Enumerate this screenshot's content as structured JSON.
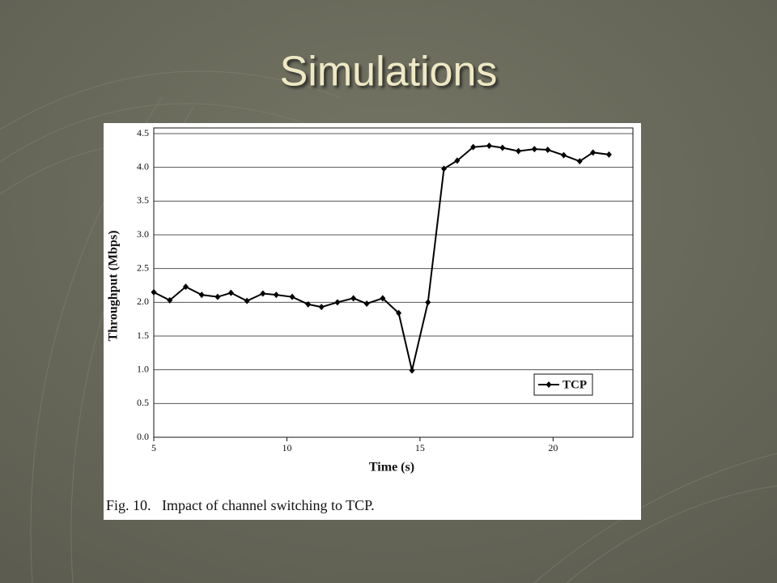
{
  "title": "Simulations",
  "chart_data": {
    "type": "line",
    "caption": "Fig. 10.   Impact of channel switching to TCP.",
    "x_label": "Time (s)",
    "y_label": "Throughput (Mbps)",
    "x": [
      5.0,
      5.6,
      6.2,
      6.8,
      7.4,
      7.9,
      8.5,
      9.1,
      9.6,
      10.2,
      10.8,
      11.3,
      11.9,
      12.5,
      13.0,
      13.6,
      14.2,
      14.7,
      15.3,
      15.9,
      16.4,
      17.0,
      17.6,
      18.1,
      18.7,
      19.3,
      19.8,
      20.4,
      21.0,
      21.5,
      22.1
    ],
    "series": [
      {
        "name": "TCP",
        "color": "#000000",
        "values": [
          2.15,
          2.03,
          2.23,
          2.11,
          2.08,
          2.14,
          2.02,
          2.13,
          2.11,
          2.08,
          1.97,
          1.93,
          2.0,
          2.06,
          1.98,
          2.06,
          1.84,
          0.99,
          2.0,
          3.98,
          4.1,
          4.3,
          4.32,
          4.29,
          4.24,
          4.27,
          4.26,
          4.18,
          4.09,
          4.22,
          4.19
        ]
      }
    ],
    "xlim": [
      5,
      23
    ],
    "ylim": [
      0,
      4.5
    ],
    "xticks": [
      5,
      10,
      15,
      20
    ],
    "yticks": [
      {
        "value": 0,
        "label": "0.0"
      },
      0.5,
      {
        "value": 1,
        "label": "1.0"
      },
      1.5,
      {
        "value": 2,
        "label": "2.0"
      },
      2.5,
      {
        "value": 3,
        "label": "3.0"
      },
      3.5,
      {
        "value": 4,
        "label": "4.0"
      },
      4.5
    ],
    "grid": true,
    "legend": "lower-right"
  }
}
